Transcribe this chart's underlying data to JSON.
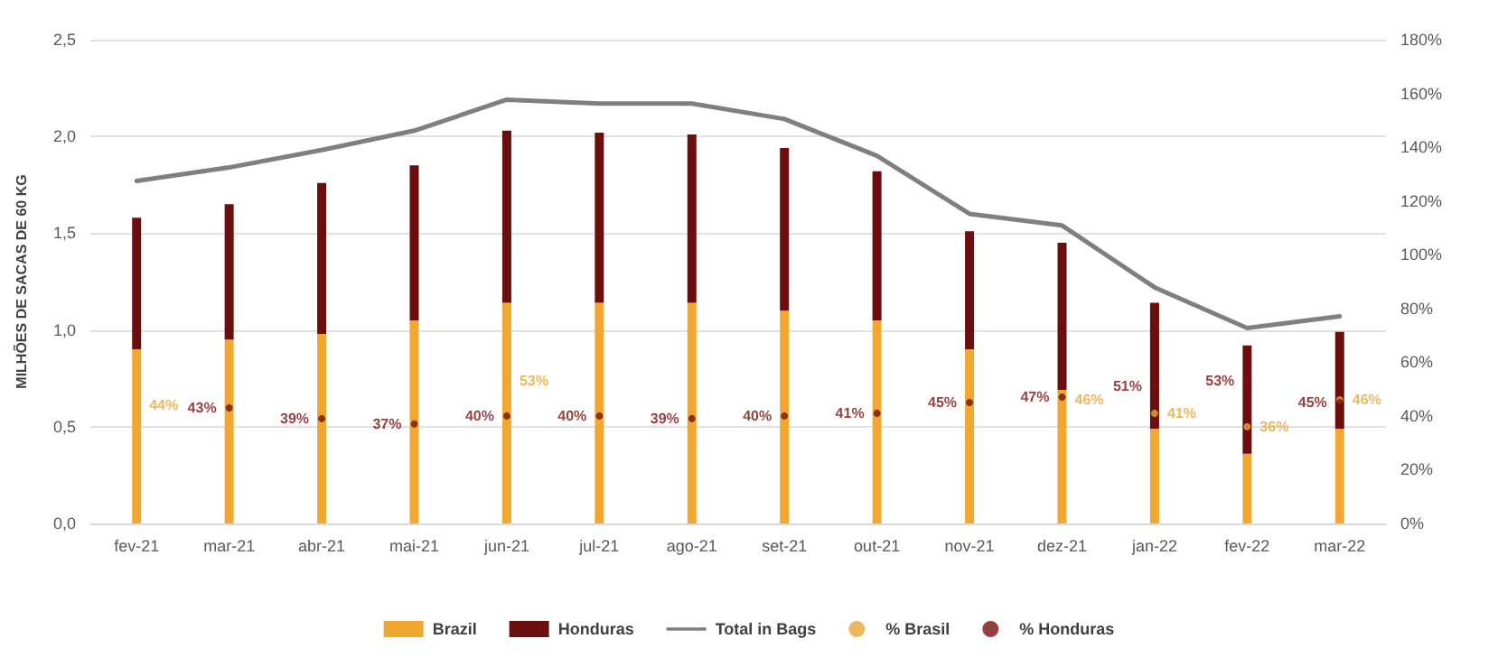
{
  "chart_data": {
    "type": "bar",
    "stacked": true,
    "categories": [
      "fev-21",
      "mar-21",
      "abr-21",
      "mai-21",
      "jun-21",
      "jul-21",
      "ago-21",
      "set-21",
      "out-21",
      "nov-21",
      "dez-21",
      "jan-22",
      "fev-22",
      "mar-22"
    ],
    "ylabel": "MILHÕES DE SACAS DE 60 KG",
    "series": [
      {
        "name": "Brazil",
        "color": "#f0a830",
        "values": [
          0.9,
          0.95,
          0.98,
          1.05,
          1.14,
          1.14,
          1.14,
          1.1,
          1.05,
          0.9,
          0.69,
          0.49,
          0.36,
          0.49
        ]
      },
      {
        "name": "Honduras",
        "color": "#6b0e0e",
        "values": [
          0.68,
          0.7,
          0.78,
          0.8,
          0.89,
          0.88,
          0.87,
          0.84,
          0.77,
          0.61,
          0.76,
          0.65,
          0.56,
          0.5
        ]
      },
      {
        "name": "Total in Bags",
        "type": "line",
        "color": "#7f7f7f",
        "marker": "none",
        "values": [
          1.77,
          1.84,
          1.93,
          2.03,
          2.19,
          2.17,
          2.17,
          2.09,
          1.9,
          1.6,
          1.54,
          1.22,
          1.01,
          1.07
        ]
      },
      {
        "name": "% Brasil",
        "type": "scatter",
        "axis": "y2",
        "color": "#e8a735",
        "marker": "circle",
        "values": [
          44,
          null,
          null,
          null,
          53,
          null,
          null,
          null,
          null,
          null,
          46,
          41,
          36,
          46
        ],
        "value_labels": [
          "44%",
          null,
          null,
          null,
          "53%",
          null,
          null,
          null,
          null,
          null,
          "46%",
          "41%",
          "36%",
          "46%"
        ]
      },
      {
        "name": "% Honduras",
        "type": "scatter",
        "axis": "y2",
        "color": "#7b1010",
        "marker": "circle",
        "values": [
          null,
          43,
          39,
          37,
          40,
          40,
          39,
          40,
          41,
          45,
          47,
          51,
          53,
          45
        ],
        "value_labels": [
          null,
          "43%",
          "39%",
          "37%",
          "40%",
          "40%",
          "39%",
          "40%",
          "41%",
          "45%",
          "47%",
          "51%",
          "53%",
          "45%"
        ]
      }
    ],
    "ylim": [
      0,
      2.5
    ],
    "yticks": [
      {
        "value": 0,
        "label": "0,0"
      },
      {
        "value": 0.5,
        "label": "0,5"
      },
      {
        "value": 1,
        "label": "1,0"
      },
      {
        "value": 1.5,
        "label": "1,5"
      },
      {
        "value": 2,
        "label": "2,0"
      },
      {
        "value": 2.5,
        "label": "2,5"
      }
    ],
    "y2lim": [
      0,
      180
    ],
    "y2ticks": [
      {
        "value": 0,
        "label": "0%"
      },
      {
        "value": 20,
        "label": "20%"
      },
      {
        "value": 40,
        "label": "40%"
      },
      {
        "value": 60,
        "label": "60%"
      },
      {
        "value": 80,
        "label": "80%"
      },
      {
        "value": 100,
        "label": "100%"
      },
      {
        "value": 120,
        "label": "120%"
      },
      {
        "value": 140,
        "label": "140%"
      },
      {
        "value": 160,
        "label": "160%"
      },
      {
        "value": 180,
        "label": "180%"
      }
    ],
    "grid": "y",
    "legend": "bottom"
  }
}
